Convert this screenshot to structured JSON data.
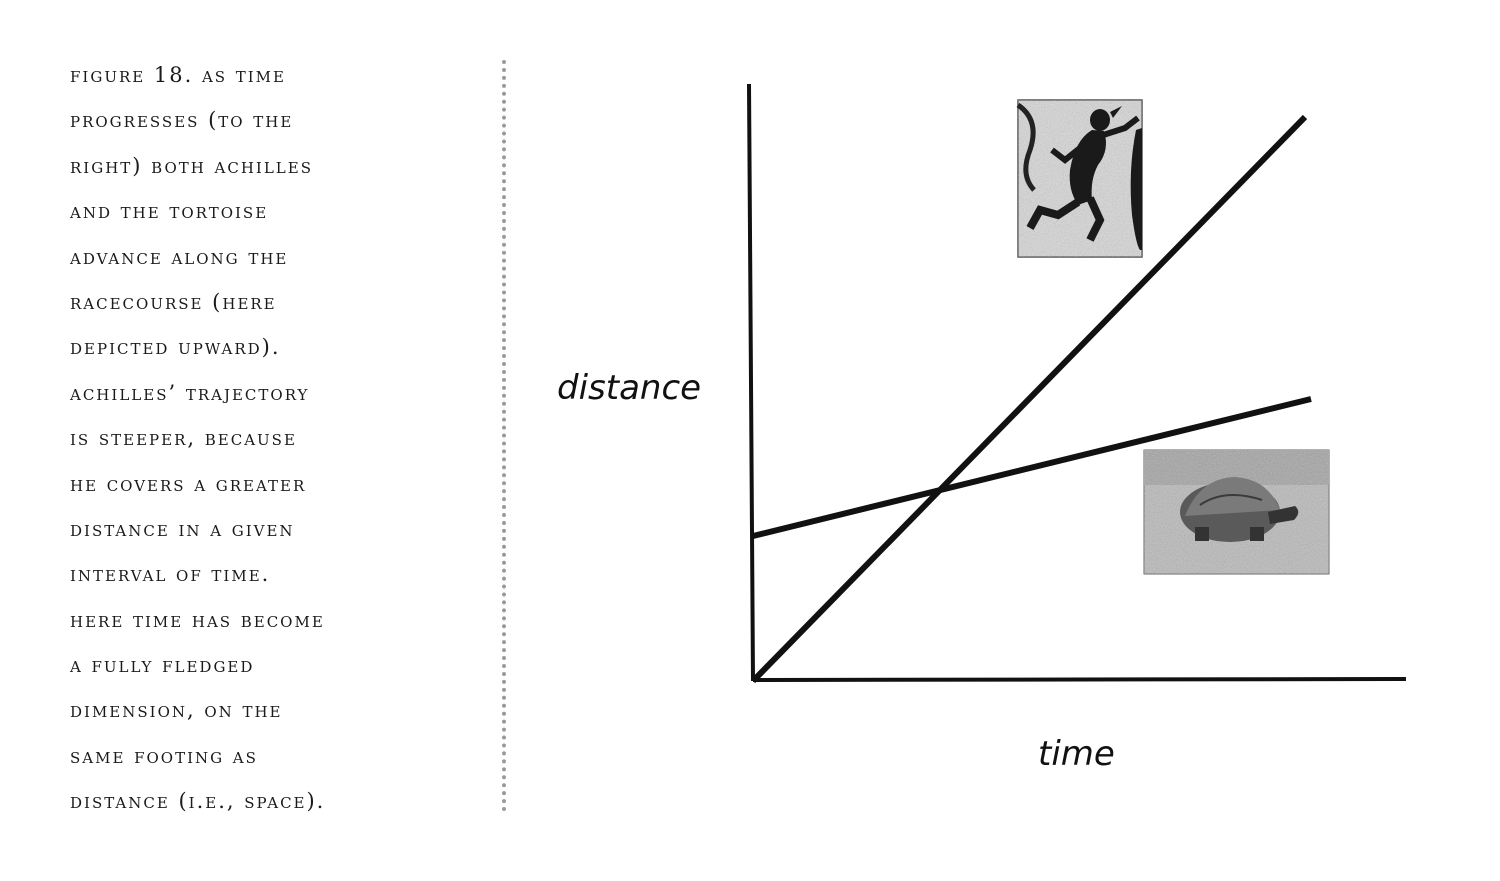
{
  "caption": {
    "lines": [
      "FIGURE 18. AS TIME",
      "PROGRESSES (TO THE",
      "RIGHT) BOTH ACHILLES",
      "AND THE TORTOISE",
      "ADVANCE ALONG THE",
      "RACECOURSE (HERE",
      "DEPICTED UPWARD).",
      "ACHILLES’ TRAJECTORY",
      "IS STEEPER, BECAUSE",
      "HE COVERS A GREATER",
      "DISTANCE IN A GIVEN",
      "INTERVAL OF TIME.",
      "HERE TIME HAS BECOME",
      "A FULLY FLEDGED",
      "DIMENSION, ON THE",
      "SAME FOOTING AS",
      "DISTANCE (I.E., SPACE)."
    ]
  },
  "diagram": {
    "y_axis_label": "distance",
    "x_axis_label": "time",
    "images": {
      "achilles": "runner-figure-image",
      "tortoise": "tortoise-photo-image"
    }
  }
}
